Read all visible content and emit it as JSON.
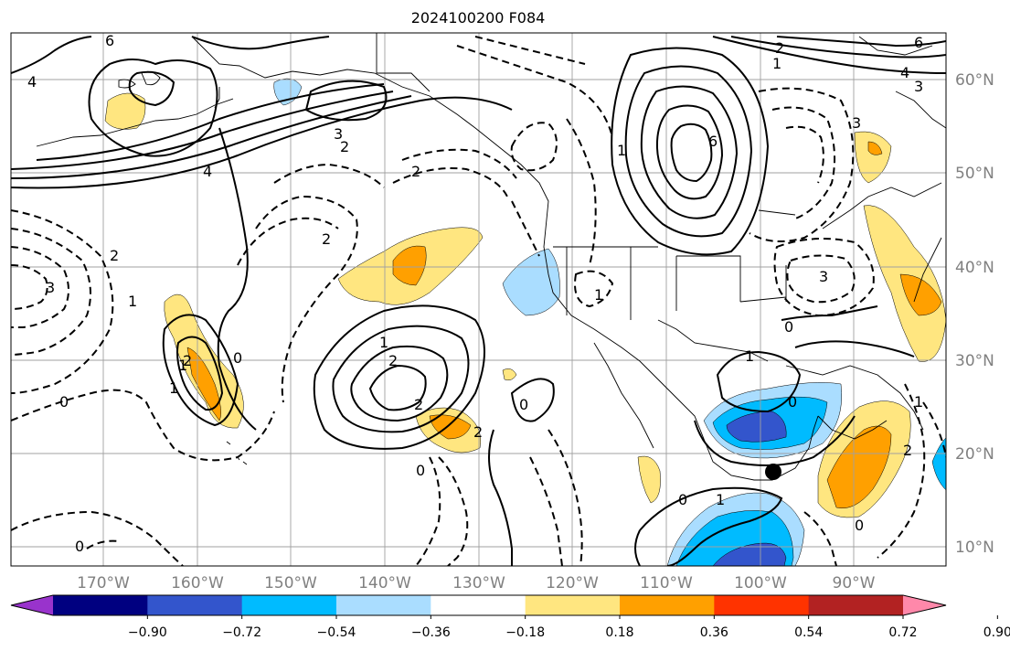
{
  "title": "2024100200 F084",
  "lon_labels": [
    "170°W",
    "160°W",
    "150°W",
    "140°W",
    "130°W",
    "120°W",
    "110°W",
    "100°W",
    "90°W"
  ],
  "lat_labels": [
    "60°N",
    "50°N",
    "40°N",
    "30°N",
    "20°N",
    "10°N"
  ],
  "colorbar": {
    "labels": [
      "−0.90",
      "−0.72",
      "−0.54",
      "−0.36",
      "−0.18",
      "0.18",
      "0.36",
      "0.54",
      "0.72",
      "0.90"
    ],
    "colors": [
      "#9933cc",
      "#000080",
      "#3355cc",
      "#00bbff",
      "#aaddff",
      "#ffffff",
      "#ffe680",
      "#ffa000",
      "#ff3300",
      "#b22222",
      "#ff88aa"
    ]
  },
  "contour_labels": [
    "6",
    "4",
    "3",
    "2",
    "2",
    "4",
    "3",
    "2",
    "1",
    "6",
    "2",
    "1",
    "3",
    "2",
    "2",
    "1",
    "2",
    "1",
    "1",
    "2",
    "1",
    "0",
    "2",
    "0",
    "1",
    "0",
    "3",
    "0",
    "1",
    "0",
    "1",
    "0",
    "0",
    "1",
    "0",
    "2",
    "0",
    "3",
    "6",
    "4"
  ],
  "marker": "point"
}
